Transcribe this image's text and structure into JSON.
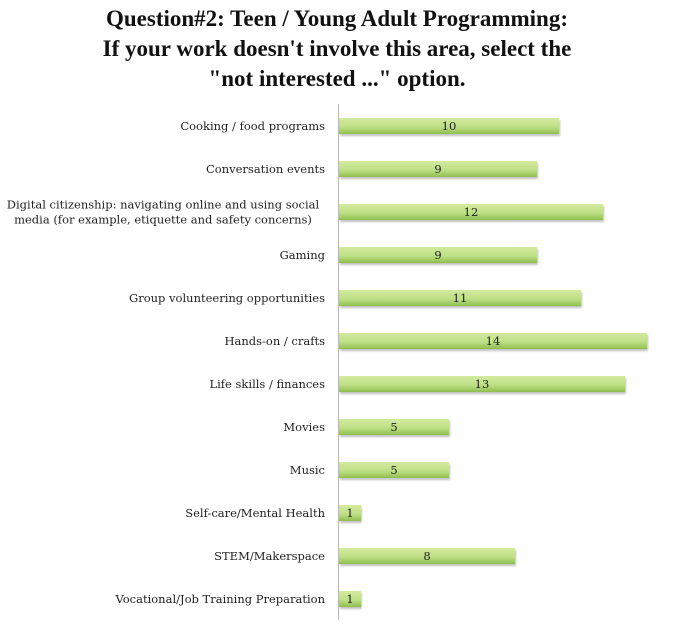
{
  "chart_data": {
    "type": "bar",
    "orientation": "horizontal",
    "title": [
      "Question#2: Teen / Young Adult Programming:",
      "If your work doesn't involve this area, select the",
      "\"not interested ...\" option."
    ],
    "categories": [
      [
        "Cooking / food programs"
      ],
      [
        "Conversation events"
      ],
      [
        "Digital citizenship: navigating online and using social",
        "media (for example, etiquette and safety concerns)"
      ],
      [
        "Gaming"
      ],
      [
        "Group volunteering opportunities"
      ],
      [
        "Hands-on / crafts"
      ],
      [
        "Life skills / finances"
      ],
      [
        "Movies"
      ],
      [
        "Music"
      ],
      [
        "Self-care/Mental Health"
      ],
      [
        "STEM/Makerspace"
      ],
      [
        "Vocational/Job Training Preparation"
      ]
    ],
    "values": [
      10,
      9,
      12,
      9,
      11,
      14,
      13,
      5,
      5,
      1,
      8,
      1
    ],
    "xlim": [
      0,
      14
    ],
    "xlabel": "",
    "ylabel": "",
    "grid": false,
    "legend": "none",
    "bar_color": "#a9d26b"
  }
}
